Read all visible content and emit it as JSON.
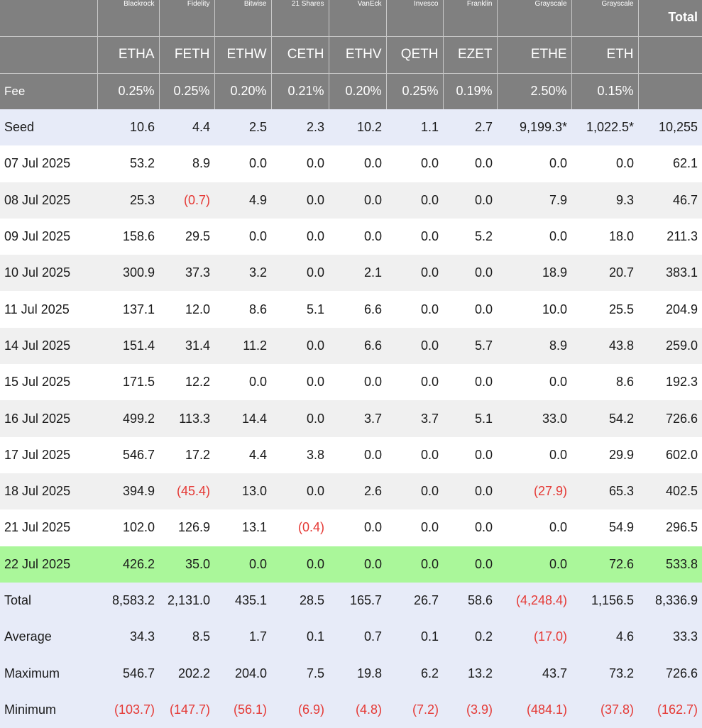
{
  "colors": {
    "header_bg": "#808080",
    "seed_bg": "#e7ebf8",
    "stripe_bg": "#f0f0f0",
    "latest_bg": "#aaf79a",
    "negative_text": "#e53935"
  },
  "header": {
    "issuers": [
      "",
      "Blackrock",
      "Fidelity",
      "Bitwise",
      "21 Shares",
      "VanEck",
      "Invesco",
      "Franklin",
      "Grayscale",
      "Grayscale",
      "Total"
    ],
    "tickers": [
      "",
      "ETHA",
      "FETH",
      "ETHW",
      "CETH",
      "ETHV",
      "QETH",
      "EZET",
      "ETHE",
      "ETH",
      ""
    ],
    "fees": [
      "Fee",
      "0.25%",
      "0.25%",
      "0.20%",
      "0.21%",
      "0.20%",
      "0.25%",
      "0.19%",
      "2.50%",
      "0.15%",
      ""
    ]
  },
  "rows": [
    {
      "label": "Seed",
      "style": "seed",
      "values": [
        "10.6",
        "4.4",
        "2.5",
        "2.3",
        "10.2",
        "1.1",
        "2.7",
        "9,199.3*",
        "1,022.5*",
        "10,255"
      ]
    },
    {
      "label": "07 Jul 2025",
      "style": "odd",
      "values": [
        "53.2",
        "8.9",
        "0.0",
        "0.0",
        "0.0",
        "0.0",
        "0.0",
        "0.0",
        "0.0",
        "62.1"
      ]
    },
    {
      "label": "08 Jul 2025",
      "style": "even",
      "values": [
        "25.3",
        "(0.7)",
        "4.9",
        "0.0",
        "0.0",
        "0.0",
        "0.0",
        "7.9",
        "9.3",
        "46.7"
      ]
    },
    {
      "label": "09 Jul 2025",
      "style": "odd",
      "values": [
        "158.6",
        "29.5",
        "0.0",
        "0.0",
        "0.0",
        "0.0",
        "5.2",
        "0.0",
        "18.0",
        "211.3"
      ]
    },
    {
      "label": "10 Jul 2025",
      "style": "even",
      "values": [
        "300.9",
        "37.3",
        "3.2",
        "0.0",
        "2.1",
        "0.0",
        "0.0",
        "18.9",
        "20.7",
        "383.1"
      ]
    },
    {
      "label": "11 Jul 2025",
      "style": "odd",
      "values": [
        "137.1",
        "12.0",
        "8.6",
        "5.1",
        "6.6",
        "0.0",
        "0.0",
        "10.0",
        "25.5",
        "204.9"
      ]
    },
    {
      "label": "14 Jul 2025",
      "style": "even",
      "values": [
        "151.4",
        "31.4",
        "11.2",
        "0.0",
        "6.6",
        "0.0",
        "5.7",
        "8.9",
        "43.8",
        "259.0"
      ]
    },
    {
      "label": "15 Jul 2025",
      "style": "odd",
      "values": [
        "171.5",
        "12.2",
        "0.0",
        "0.0",
        "0.0",
        "0.0",
        "0.0",
        "0.0",
        "8.6",
        "192.3"
      ]
    },
    {
      "label": "16 Jul 2025",
      "style": "even",
      "values": [
        "499.2",
        "113.3",
        "14.4",
        "0.0",
        "3.7",
        "3.7",
        "5.1",
        "33.0",
        "54.2",
        "726.6"
      ]
    },
    {
      "label": "17 Jul 2025",
      "style": "odd",
      "values": [
        "546.7",
        "17.2",
        "4.4",
        "3.8",
        "0.0",
        "0.0",
        "0.0",
        "0.0",
        "29.9",
        "602.0"
      ]
    },
    {
      "label": "18 Jul 2025",
      "style": "even",
      "values": [
        "394.9",
        "(45.4)",
        "13.0",
        "0.0",
        "2.6",
        "0.0",
        "0.0",
        "(27.9)",
        "65.3",
        "402.5"
      ]
    },
    {
      "label": "21 Jul 2025",
      "style": "odd",
      "values": [
        "102.0",
        "126.9",
        "13.1",
        "(0.4)",
        "0.0",
        "0.0",
        "0.0",
        "0.0",
        "54.9",
        "296.5"
      ]
    },
    {
      "label": "22 Jul 2025",
      "style": "latest",
      "values": [
        "426.2",
        "35.0",
        "0.0",
        "0.0",
        "0.0",
        "0.0",
        "0.0",
        "0.0",
        "72.6",
        "533.8"
      ]
    },
    {
      "label": "Total",
      "style": "stat",
      "values": [
        "8,583.2",
        "2,131.0",
        "435.1",
        "28.5",
        "165.7",
        "26.7",
        "58.6",
        "(4,248.4)",
        "1,156.5",
        "8,336.9"
      ]
    },
    {
      "label": "Average",
      "style": "stat",
      "values": [
        "34.3",
        "8.5",
        "1.7",
        "0.1",
        "0.7",
        "0.1",
        "0.2",
        "(17.0)",
        "4.6",
        "33.3"
      ]
    },
    {
      "label": "Maximum",
      "style": "stat",
      "values": [
        "546.7",
        "202.2",
        "204.0",
        "7.5",
        "19.8",
        "6.2",
        "13.2",
        "43.7",
        "73.2",
        "726.6"
      ]
    },
    {
      "label": "Minimum",
      "style": "stat",
      "values": [
        "(103.7)",
        "(147.7)",
        "(56.1)",
        "(6.9)",
        "(4.8)",
        "(7.2)",
        "(3.9)",
        "(484.1)",
        "(37.8)",
        "(162.7)"
      ]
    }
  ]
}
